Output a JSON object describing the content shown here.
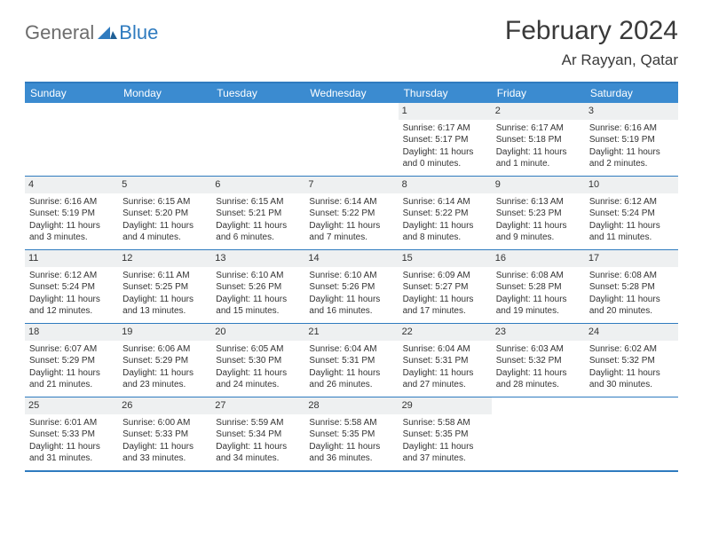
{
  "logo": {
    "general": "General",
    "blue": "Blue"
  },
  "title": "February 2024",
  "location": "Ar Rayyan, Qatar",
  "colors": {
    "header_bar": "#3b8bd0",
    "border": "#2f7bbf",
    "daynum_bg": "#eef0f1",
    "text": "#333333",
    "logo_gray": "#6d6d6d",
    "logo_blue": "#2f7bbf",
    "background": "#ffffff"
  },
  "weekdays": [
    "Sunday",
    "Monday",
    "Tuesday",
    "Wednesday",
    "Thursday",
    "Friday",
    "Saturday"
  ],
  "grid": {
    "leading_blanks": 4,
    "days_in_month": 29
  },
  "days": [
    {
      "n": 1,
      "sunrise": "6:17 AM",
      "sunset": "5:17 PM",
      "daylight": "11 hours and 0 minutes."
    },
    {
      "n": 2,
      "sunrise": "6:17 AM",
      "sunset": "5:18 PM",
      "daylight": "11 hours and 1 minute."
    },
    {
      "n": 3,
      "sunrise": "6:16 AM",
      "sunset": "5:19 PM",
      "daylight": "11 hours and 2 minutes."
    },
    {
      "n": 4,
      "sunrise": "6:16 AM",
      "sunset": "5:19 PM",
      "daylight": "11 hours and 3 minutes."
    },
    {
      "n": 5,
      "sunrise": "6:15 AM",
      "sunset": "5:20 PM",
      "daylight": "11 hours and 4 minutes."
    },
    {
      "n": 6,
      "sunrise": "6:15 AM",
      "sunset": "5:21 PM",
      "daylight": "11 hours and 6 minutes."
    },
    {
      "n": 7,
      "sunrise": "6:14 AM",
      "sunset": "5:22 PM",
      "daylight": "11 hours and 7 minutes."
    },
    {
      "n": 8,
      "sunrise": "6:14 AM",
      "sunset": "5:22 PM",
      "daylight": "11 hours and 8 minutes."
    },
    {
      "n": 9,
      "sunrise": "6:13 AM",
      "sunset": "5:23 PM",
      "daylight": "11 hours and 9 minutes."
    },
    {
      "n": 10,
      "sunrise": "6:12 AM",
      "sunset": "5:24 PM",
      "daylight": "11 hours and 11 minutes."
    },
    {
      "n": 11,
      "sunrise": "6:12 AM",
      "sunset": "5:24 PM",
      "daylight": "11 hours and 12 minutes."
    },
    {
      "n": 12,
      "sunrise": "6:11 AM",
      "sunset": "5:25 PM",
      "daylight": "11 hours and 13 minutes."
    },
    {
      "n": 13,
      "sunrise": "6:10 AM",
      "sunset": "5:26 PM",
      "daylight": "11 hours and 15 minutes."
    },
    {
      "n": 14,
      "sunrise": "6:10 AM",
      "sunset": "5:26 PM",
      "daylight": "11 hours and 16 minutes."
    },
    {
      "n": 15,
      "sunrise": "6:09 AM",
      "sunset": "5:27 PM",
      "daylight": "11 hours and 17 minutes."
    },
    {
      "n": 16,
      "sunrise": "6:08 AM",
      "sunset": "5:28 PM",
      "daylight": "11 hours and 19 minutes."
    },
    {
      "n": 17,
      "sunrise": "6:08 AM",
      "sunset": "5:28 PM",
      "daylight": "11 hours and 20 minutes."
    },
    {
      "n": 18,
      "sunrise": "6:07 AM",
      "sunset": "5:29 PM",
      "daylight": "11 hours and 21 minutes."
    },
    {
      "n": 19,
      "sunrise": "6:06 AM",
      "sunset": "5:29 PM",
      "daylight": "11 hours and 23 minutes."
    },
    {
      "n": 20,
      "sunrise": "6:05 AM",
      "sunset": "5:30 PM",
      "daylight": "11 hours and 24 minutes."
    },
    {
      "n": 21,
      "sunrise": "6:04 AM",
      "sunset": "5:31 PM",
      "daylight": "11 hours and 26 minutes."
    },
    {
      "n": 22,
      "sunrise": "6:04 AM",
      "sunset": "5:31 PM",
      "daylight": "11 hours and 27 minutes."
    },
    {
      "n": 23,
      "sunrise": "6:03 AM",
      "sunset": "5:32 PM",
      "daylight": "11 hours and 28 minutes."
    },
    {
      "n": 24,
      "sunrise": "6:02 AM",
      "sunset": "5:32 PM",
      "daylight": "11 hours and 30 minutes."
    },
    {
      "n": 25,
      "sunrise": "6:01 AM",
      "sunset": "5:33 PM",
      "daylight": "11 hours and 31 minutes."
    },
    {
      "n": 26,
      "sunrise": "6:00 AM",
      "sunset": "5:33 PM",
      "daylight": "11 hours and 33 minutes."
    },
    {
      "n": 27,
      "sunrise": "5:59 AM",
      "sunset": "5:34 PM",
      "daylight": "11 hours and 34 minutes."
    },
    {
      "n": 28,
      "sunrise": "5:58 AM",
      "sunset": "5:35 PM",
      "daylight": "11 hours and 36 minutes."
    },
    {
      "n": 29,
      "sunrise": "5:58 AM",
      "sunset": "5:35 PM",
      "daylight": "11 hours and 37 minutes."
    }
  ],
  "labels": {
    "sunrise": "Sunrise:",
    "sunset": "Sunset:",
    "daylight": "Daylight:"
  }
}
